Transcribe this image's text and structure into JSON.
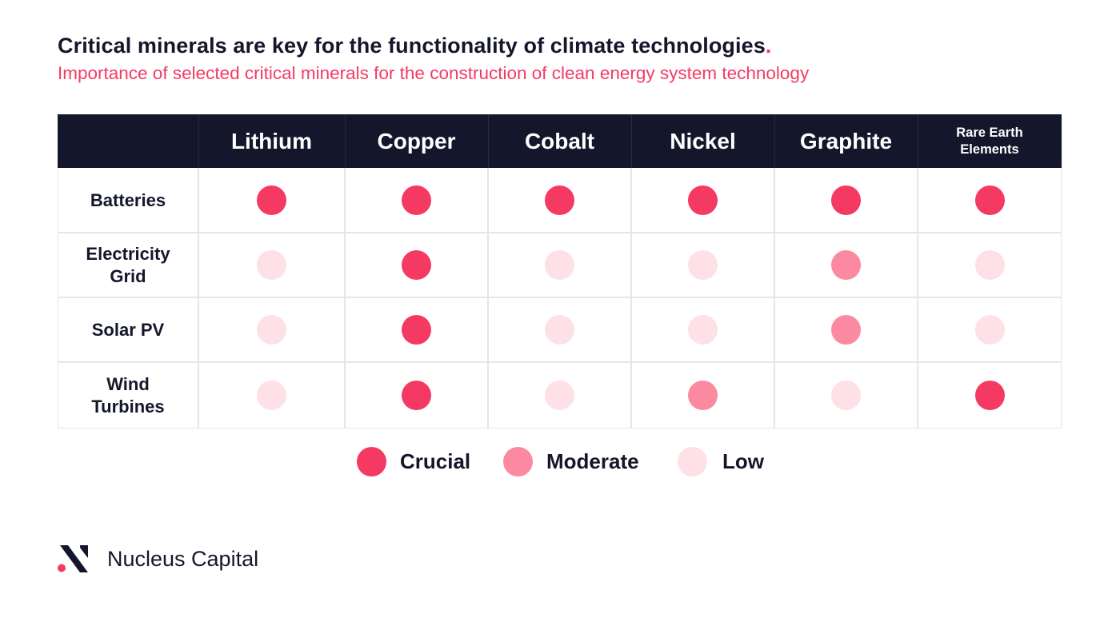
{
  "title": "Critical minerals are key for the functionality of climate technologies",
  "title_dot": ".",
  "subtitle": "Importance of selected critical minerals for the construction of clean energy system technology",
  "brand": "Nucleus Capital",
  "colors": {
    "crucial": "#f43a63",
    "moderate": "#fb8aa1",
    "low": "#fde1e6",
    "header_bg": "#14162b",
    "accent": "#f43a63"
  },
  "chart_data": {
    "type": "table",
    "columns": [
      "Lithium",
      "Copper",
      "Cobalt",
      "Nickel",
      "Graphite",
      "Rare Earth Elements"
    ],
    "column_lines": [
      [
        "Lithium"
      ],
      [
        "Copper"
      ],
      [
        "Cobalt"
      ],
      [
        "Nickel"
      ],
      [
        "Graphite"
      ],
      [
        "Rare Earth",
        "Elements"
      ]
    ],
    "rows": [
      {
        "label": "Batteries",
        "lines": [
          "Batteries"
        ],
        "values": [
          "Crucial",
          "Crucial",
          "Crucial",
          "Crucial",
          "Crucial",
          "Crucial"
        ]
      },
      {
        "label": "Electricity Grid",
        "lines": [
          "Electricity",
          "Grid"
        ],
        "values": [
          "Low",
          "Crucial",
          "Low",
          "Low",
          "Moderate",
          "Low"
        ]
      },
      {
        "label": "Solar PV",
        "lines": [
          "Solar PV"
        ],
        "values": [
          "Low",
          "Crucial",
          "Low",
          "Low",
          "Moderate",
          "Low"
        ]
      },
      {
        "label": "Wind Turbines",
        "lines": [
          "Wind",
          "Turbines"
        ],
        "values": [
          "Low",
          "Crucial",
          "Low",
          "Moderate",
          "Low",
          "Crucial"
        ]
      }
    ],
    "legend": [
      {
        "label": "Crucial",
        "level": "crucial"
      },
      {
        "label": "Moderate",
        "level": "moderate"
      },
      {
        "label": "Low",
        "level": "low"
      }
    ]
  }
}
